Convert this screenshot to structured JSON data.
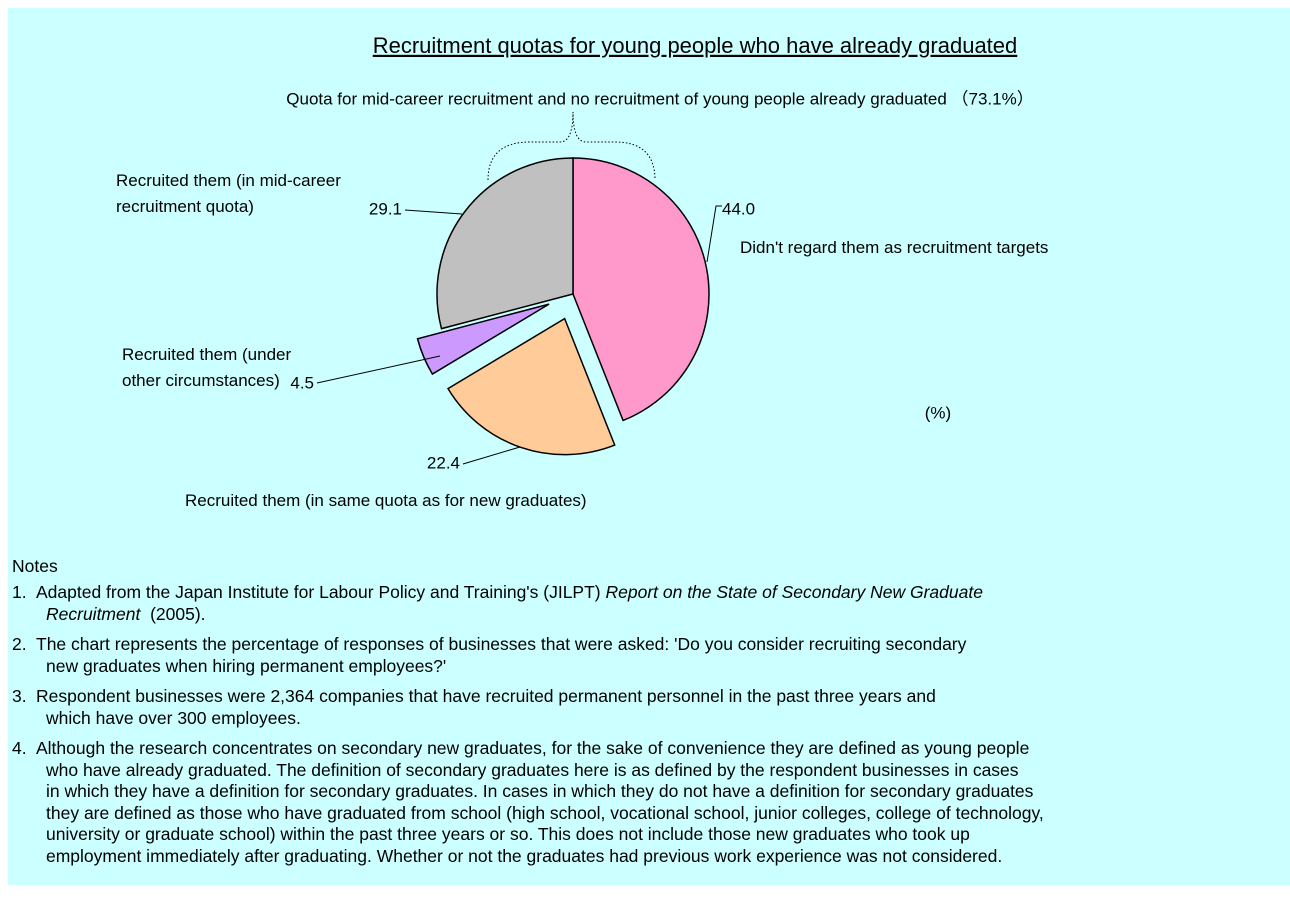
{
  "chart_data": {
    "type": "pie",
    "title": "Recruitment quotas for young people who have already graduated",
    "annotation": "Quota for mid-career recruitment and no recruitment of young people already graduated （73.1%）",
    "unit": "(%)",
    "categories": [
      "Didn't regard them as recruitment targets",
      "Recruited them (in same quota as for new graduates)",
      "Recruited them (under other circumstances)",
      "Recruited them (in mid-career recruitment quota)"
    ],
    "values": [
      44.0,
      22.4,
      4.5,
      29.1
    ],
    "value_labels": [
      "44.0",
      "22.4",
      "4.5",
      "29.1"
    ],
    "colors": [
      "#ff99cc",
      "#ffcc99",
      "#cc99ff",
      "#c0c0c0"
    ]
  },
  "notes": {
    "heading": "Notes",
    "items": [
      {
        "number": "1.",
        "lines": [
          [
            {
              "text": "Adapted from the Japan Institute for Labour Policy and Training's (JILPT) "
            },
            {
              "text": "Report on the State of Secondary New Graduate",
              "italic": true
            }
          ],
          [
            {
              "text": "Recruitment",
              "italic": true
            },
            {
              "text": "  (2005)."
            }
          ]
        ]
      },
      {
        "number": "2.",
        "lines": [
          [
            {
              "text": "The chart represents the percentage of responses of businesses that were asked: 'Do you consider recruiting secondary"
            }
          ],
          [
            {
              "text": "new graduates when hiring permanent employees?'"
            }
          ]
        ]
      },
      {
        "number": "3.",
        "lines": [
          [
            {
              "text": "Respondent businesses were 2,364 companies that have recruited permanent personnel in the past three years and"
            }
          ],
          [
            {
              "text": "which have over 300 employees."
            }
          ]
        ]
      },
      {
        "number": "4.",
        "lines": [
          [
            {
              "text": "Although the research concentrates on secondary new graduates, for the sake of convenience they are defined as young people"
            }
          ],
          [
            {
              "text": "who have already graduated. The definition of secondary graduates here is as defined by the respondent businesses in cases"
            }
          ],
          [
            {
              "text": "in which they have a definition for secondary graduates. In cases in which they do not have a definition for secondary graduates"
            }
          ],
          [
            {
              "text": "they are defined as those who have graduated from school (high school, vocational school, junior colleges, college of technology,"
            }
          ],
          [
            {
              "text": "university or graduate school) within the past three years or so. This does not include those new graduates who took up"
            }
          ],
          [
            {
              "text": "employment immediately after graduating. Whether or not the graduates had previous work experience was not considered."
            }
          ]
        ]
      }
    ]
  }
}
